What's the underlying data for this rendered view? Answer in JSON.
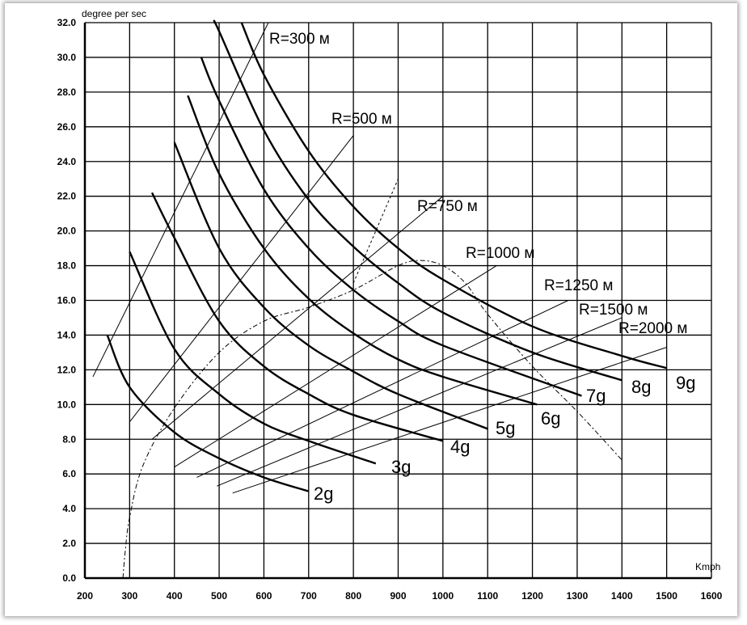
{
  "chart_data": {
    "type": "line",
    "title": "",
    "xlabel": "Kmph",
    "ylabel": "degree per sec",
    "xlim": [
      200,
      1600
    ],
    "ylim": [
      0,
      32
    ],
    "grid": true,
    "x_ticks": [
      "200",
      "300",
      "400",
      "500",
      "600",
      "700",
      "800",
      "900",
      "1000",
      "1100",
      "1200",
      "1300",
      "1400",
      "1500",
      "1600"
    ],
    "y_ticks": [
      "0.0",
      "2.0",
      "4.0",
      "6.0",
      "8.0",
      "10.0",
      "12.0",
      "14.0",
      "16.0",
      "18.0",
      "20.0",
      "22.0",
      "24.0",
      "26.0",
      "28.0",
      "30.0",
      "32.0"
    ],
    "load_factor_series": [
      {
        "name": "2g",
        "x_range": [
          250,
          700
        ],
        "points": [
          [
            250,
            14.0
          ],
          [
            300,
            11.0
          ],
          [
            400,
            8.4
          ],
          [
            500,
            6.9
          ],
          [
            600,
            5.8
          ],
          [
            700,
            5.0
          ]
        ]
      },
      {
        "name": "3g",
        "x_range": [
          300,
          850
        ],
        "points": [
          [
            300,
            18.8
          ],
          [
            400,
            13.2
          ],
          [
            500,
            10.6
          ],
          [
            600,
            8.9
          ],
          [
            700,
            7.9
          ],
          [
            850,
            6.6
          ]
        ]
      },
      {
        "name": "4g",
        "x_range": [
          350,
          1000
        ],
        "points": [
          [
            350,
            22.2
          ],
          [
            400,
            19.6
          ],
          [
            500,
            14.8
          ],
          [
            600,
            12.2
          ],
          [
            700,
            10.6
          ],
          [
            800,
            9.4
          ],
          [
            1000,
            7.9
          ]
        ]
      },
      {
        "name": "5g",
        "x_range": [
          400,
          1100
        ],
        "points": [
          [
            400,
            25.1
          ],
          [
            500,
            19.0
          ],
          [
            600,
            15.6
          ],
          [
            700,
            13.4
          ],
          [
            800,
            11.9
          ],
          [
            900,
            10.6
          ],
          [
            1100,
            8.6
          ]
        ]
      },
      {
        "name": "6g",
        "x_range": [
          430,
          1210
        ],
        "points": [
          [
            430,
            27.8
          ],
          [
            500,
            23.3
          ],
          [
            600,
            19.0
          ],
          [
            700,
            16.1
          ],
          [
            800,
            14.1
          ],
          [
            900,
            12.6
          ],
          [
            1000,
            11.6
          ],
          [
            1210,
            10.0
          ]
        ]
      },
      {
        "name": "7g",
        "x_range": [
          460,
          1310
        ],
        "points": [
          [
            460,
            30.0
          ],
          [
            500,
            27.5
          ],
          [
            600,
            22.4
          ],
          [
            700,
            19.0
          ],
          [
            800,
            16.6
          ],
          [
            900,
            14.8
          ],
          [
            1000,
            13.4
          ],
          [
            1310,
            10.5
          ]
        ]
      },
      {
        "name": "8g",
        "x_range": [
          490,
          1400
        ],
        "points": [
          [
            490,
            32.0
          ],
          [
            500,
            31.5
          ],
          [
            600,
            25.8
          ],
          [
            700,
            21.8
          ],
          [
            800,
            19.1
          ],
          [
            900,
            17.0
          ],
          [
            1000,
            15.3
          ],
          [
            1200,
            13.0
          ],
          [
            1400,
            11.4
          ]
        ]
      },
      {
        "name": "9g",
        "x_range": [
          550,
          1500
        ],
        "points": [
          [
            550,
            32.0
          ],
          [
            600,
            29.0
          ],
          [
            700,
            24.6
          ],
          [
            800,
            21.4
          ],
          [
            900,
            19.0
          ],
          [
            1000,
            17.2
          ],
          [
            1200,
            14.5
          ],
          [
            1400,
            12.8
          ],
          [
            1500,
            12.1
          ]
        ]
      }
    ],
    "radius_series": [
      {
        "name": "R=300 м",
        "points": [
          [
            218,
            11.6
          ],
          [
            610,
            32.0
          ]
        ]
      },
      {
        "name": "R=500 м",
        "points": [
          [
            300,
            9.0
          ],
          [
            800,
            25.5
          ]
        ]
      },
      {
        "name": "R=750 м",
        "points": [
          [
            350,
            8.0
          ],
          [
            1000,
            22.0
          ]
        ]
      },
      {
        "name": "R=1000 м",
        "points": [
          [
            400,
            6.4
          ],
          [
            1120,
            18.0
          ]
        ]
      },
      {
        "name": "R=1250 м",
        "points": [
          [
            450,
            5.8
          ],
          [
            1280,
            16.0
          ]
        ]
      },
      {
        "name": "R=1500 м",
        "points": [
          [
            495,
            5.3
          ],
          [
            1400,
            15.0
          ]
        ]
      },
      {
        "name": "R=2000 м",
        "points": [
          [
            530,
            4.9
          ],
          [
            1500,
            13.3
          ]
        ]
      }
    ],
    "envelope_dashed": {
      "points": [
        [
          285,
          0.0
        ],
        [
          290,
          1.5
        ],
        [
          300,
          3.5
        ],
        [
          330,
          6.5
        ],
        [
          400,
          9.8
        ],
        [
          500,
          13.0
        ],
        [
          600,
          14.8
        ],
        [
          700,
          15.6
        ],
        [
          800,
          16.6
        ],
        [
          900,
          18.0
        ],
        [
          950,
          18.3
        ],
        [
          1000,
          18.0
        ],
        [
          1050,
          17.0
        ],
        [
          1100,
          15.2
        ],
        [
          1200,
          12.2
        ],
        [
          1300,
          9.6
        ],
        [
          1400,
          6.8
        ]
      ]
    },
    "envelope_dotted": {
      "points": [
        [
          800,
          17.0
        ],
        [
          900,
          23.0
        ]
      ]
    },
    "g_labels": [
      "2g",
      "3g",
      "4g",
      "5g",
      "6g",
      "7g",
      "8g",
      "9g"
    ],
    "r_labels": [
      "R=300 м",
      "R=500 м",
      "R=750 м",
      "R=1000 м",
      "R=1250 м",
      "R=1500 м",
      "R=2000 м"
    ]
  }
}
